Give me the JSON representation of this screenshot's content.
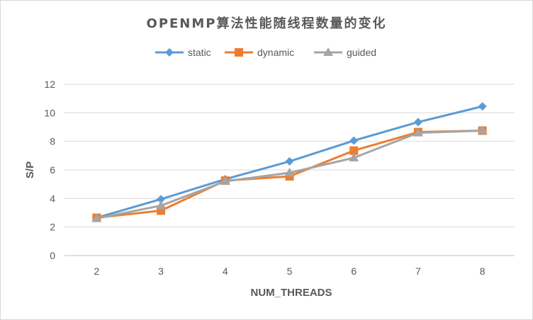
{
  "chart_data": {
    "type": "line",
    "title": "OPENMP算法性能随线程数量的变化",
    "xlabel": "NUM_THREADS",
    "ylabel": "S/P",
    "x": [
      2,
      3,
      4,
      5,
      6,
      7,
      8
    ],
    "ylim": [
      0,
      12
    ],
    "yticks": [
      0,
      2,
      4,
      6,
      8,
      10,
      12
    ],
    "grid": "horizontal",
    "legend_position": "top",
    "series": [
      {
        "name": "static",
        "color": "#5b9bd5",
        "marker": "diamond",
        "values": [
          2.65,
          3.95,
          5.35,
          6.6,
          8.05,
          9.35,
          10.45
        ]
      },
      {
        "name": "dynamic",
        "color": "#ed7d31",
        "marker": "square",
        "values": [
          2.65,
          3.15,
          5.25,
          5.55,
          7.35,
          8.65,
          8.75
        ]
      },
      {
        "name": "guided",
        "color": "#a5a5a5",
        "marker": "triangle",
        "values": [
          2.6,
          3.5,
          5.2,
          5.8,
          6.85,
          8.6,
          8.75
        ]
      }
    ]
  }
}
